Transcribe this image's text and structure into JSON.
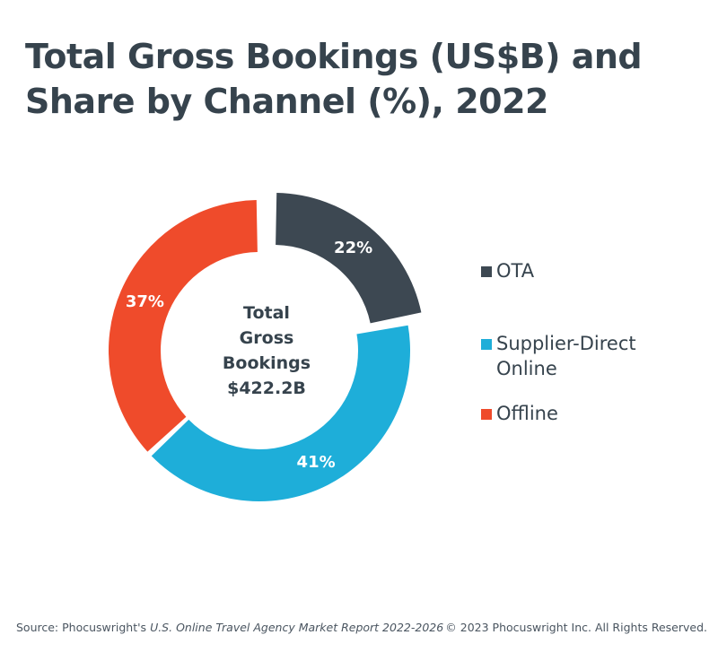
{
  "title": {
    "line1": "Total Gross Bookings (US$B) and",
    "line2": "Share by Channel (%), 2022"
  },
  "chart_data": {
    "type": "pie",
    "title": "Total Gross Bookings (US$B) and Share by Channel (%), 2022",
    "center_label": [
      "Total",
      "Gross",
      "Bookings",
      "$422.2B"
    ],
    "total": 422.2,
    "slices": [
      {
        "name": "OTA",
        "value": 22,
        "label": "22%",
        "color": "#3d4852"
      },
      {
        "name": "Supplier-Direct Online",
        "value": 41,
        "label": "41%",
        "color": "#1eaed9"
      },
      {
        "name": "Offline",
        "value": 37,
        "label": "37%",
        "color": "#ef4b2b"
      }
    ],
    "legend_placement": "right"
  },
  "legend": {
    "items": [
      {
        "label_lines": [
          "OTA"
        ],
        "color": "#3d4852"
      },
      {
        "label_lines": [
          "Supplier-Direct",
          "Online"
        ],
        "color": "#1eaed9"
      },
      {
        "label_lines": [
          "Offline"
        ],
        "color": "#ef4b2b"
      }
    ]
  },
  "footer": {
    "source_prefix": "Source: Phocuswright's ",
    "source_report": "U.S. Online Travel Agency Market Report 2022-2026",
    "copyright": "© 2023 Phocuswright Inc. All Rights Reserved."
  }
}
